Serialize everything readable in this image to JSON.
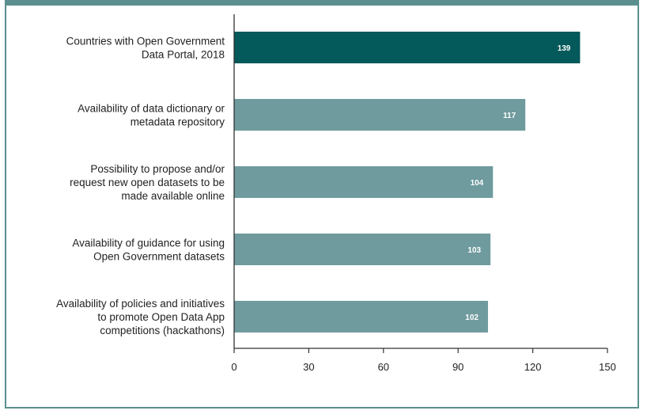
{
  "chart_data": {
    "type": "bar",
    "orientation": "horizontal",
    "categories": [
      [
        "Countries with Open Government",
        "Data Portal, 2018"
      ],
      [
        "Availability of data dictionary or",
        "metadata repository"
      ],
      [
        "Possibility to propose and/or",
        "request new open datasets to be",
        "made available online"
      ],
      [
        "Availability of guidance for using",
        "Open Government datasets"
      ],
      [
        "Availability of policies and initiatives",
        "to promote Open Data App",
        "competitions (hackathons)"
      ]
    ],
    "values": [
      139,
      117,
      104,
      103,
      102
    ],
    "xlim": [
      0,
      150
    ],
    "xticks": [
      0,
      30,
      60,
      90,
      120,
      150
    ],
    "grid": false,
    "colors": {
      "highlight": "#04595a",
      "bar": "#6f9b9e",
      "frame": "#5b8f8f",
      "axis": "#333333"
    }
  }
}
